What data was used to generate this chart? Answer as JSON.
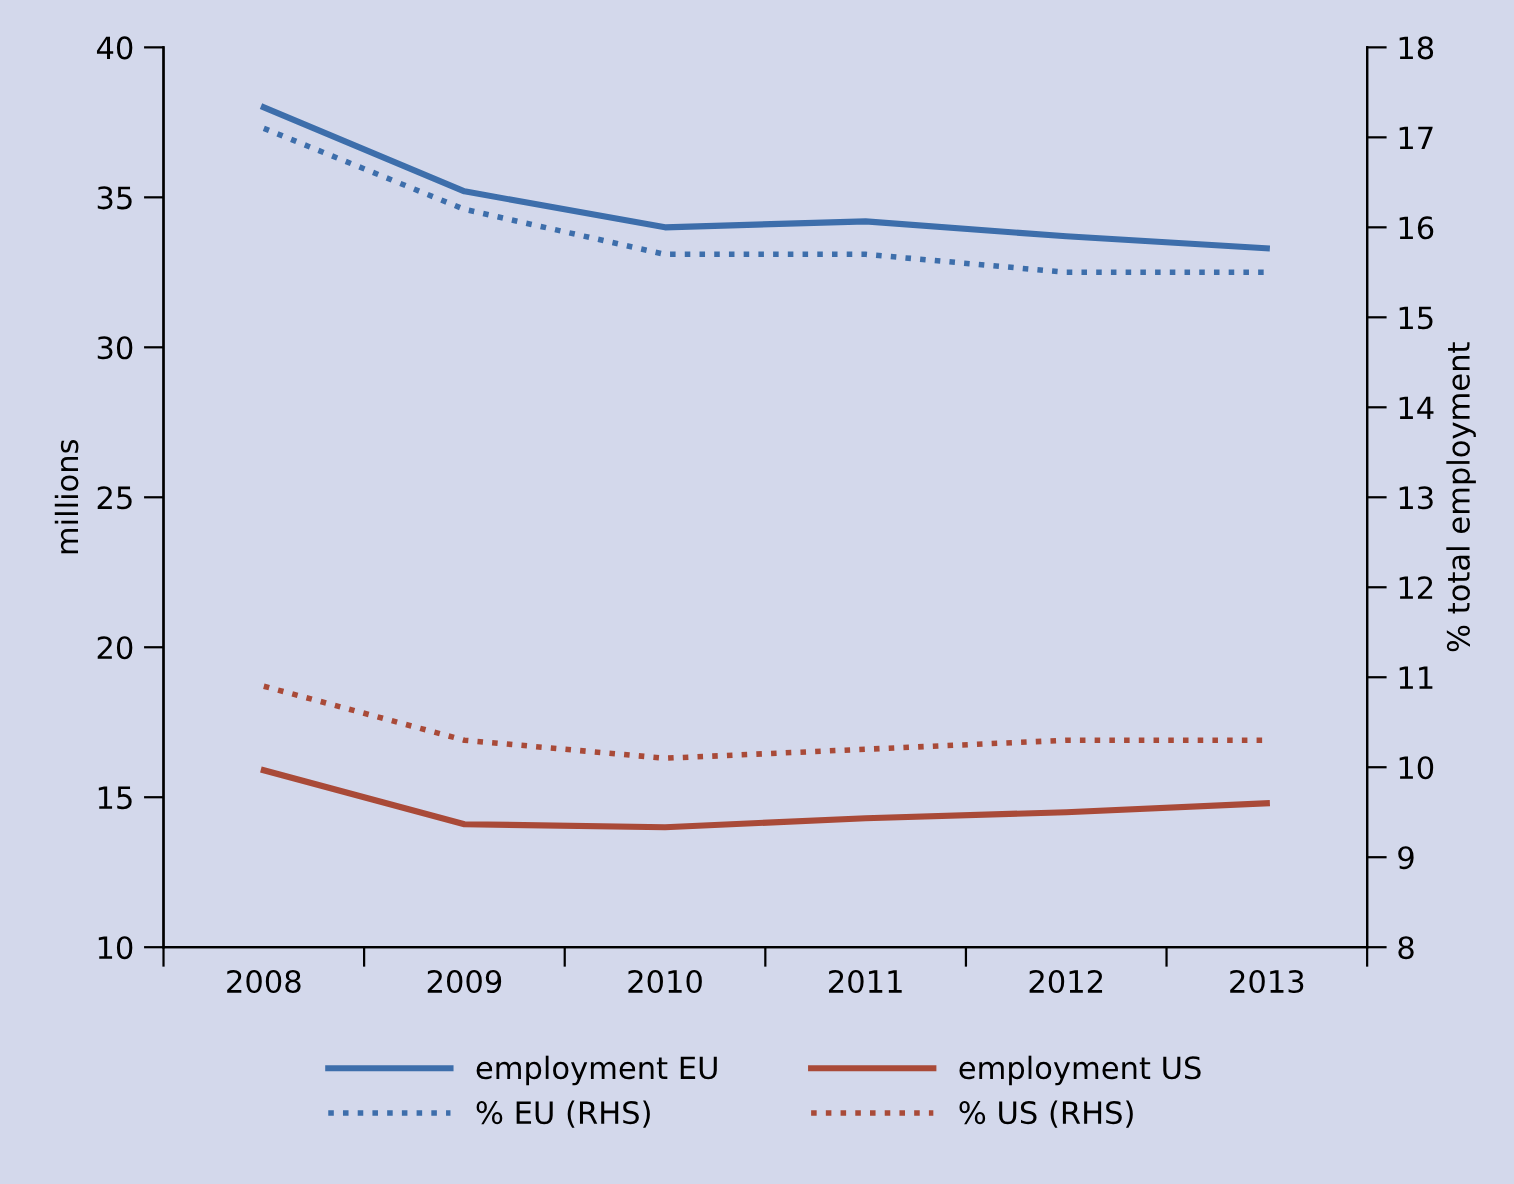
{
  "chart_data": {
    "type": "line",
    "categories": [
      "2008",
      "2009",
      "2010",
      "2011",
      "2012",
      "2013"
    ],
    "ylabel": "millions",
    "y2label": "% total employment",
    "ylim": [
      10,
      40
    ],
    "yticks": [
      10,
      15,
      20,
      25,
      30,
      35,
      40
    ],
    "y2lim": [
      8,
      18
    ],
    "y2ticks": [
      8,
      9,
      10,
      11,
      12,
      13,
      14,
      15,
      16,
      17,
      18
    ],
    "grid": false,
    "legend": "bottom",
    "series": [
      {
        "name": "employment EU",
        "color": "#3d6eab",
        "line_style": "solid",
        "values": [
          38.0,
          35.2,
          34.0,
          34.2,
          33.7,
          33.3
        ]
      },
      {
        "name": "employment US",
        "color": "#a94a38",
        "line_style": "solid",
        "values": [
          15.9,
          14.1,
          14.0,
          14.3,
          14.5,
          14.8
        ]
      },
      {
        "name": "% EU (RHS)",
        "color": "#3d6eab",
        "line_style": "dotted",
        "axis": "y2",
        "values": [
          17.1,
          16.2,
          15.7,
          15.7,
          15.5,
          15.5
        ]
      },
      {
        "name": "% US (RHS)",
        "color": "#a94a38",
        "line_style": "dotted",
        "axis": "y2",
        "values": [
          10.9,
          10.3,
          10.1,
          10.2,
          10.3,
          10.3
        ]
      }
    ]
  }
}
